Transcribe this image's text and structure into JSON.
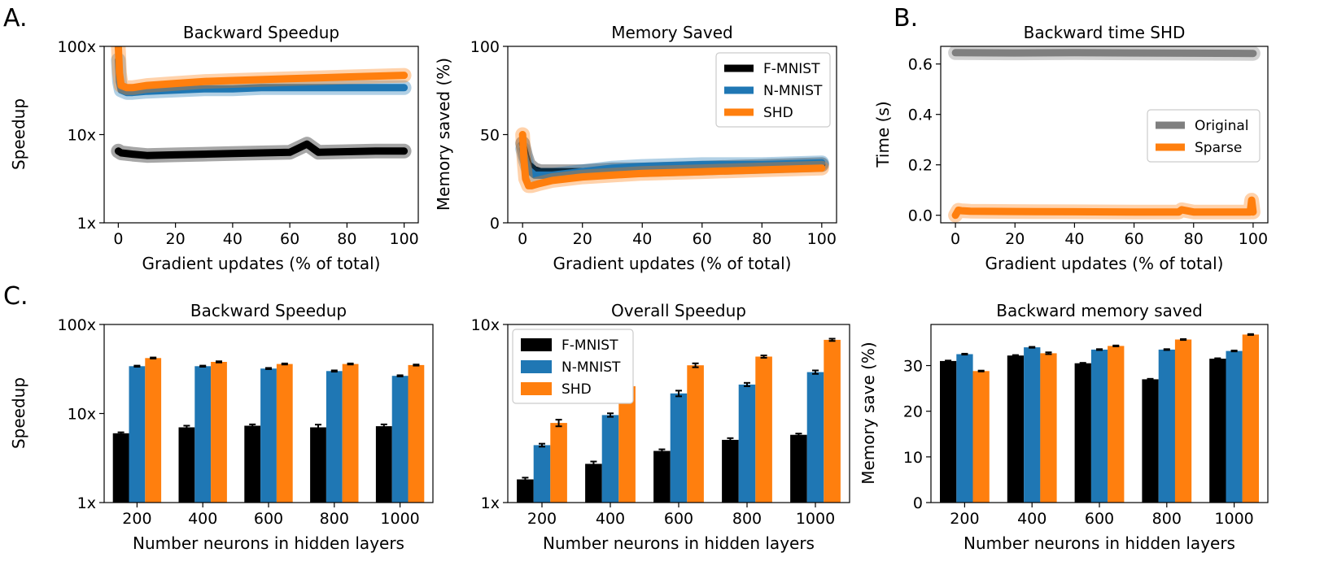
{
  "panel_letters": {
    "a": "A.",
    "b": "B.",
    "c": "C."
  },
  "colors": {
    "fmnist": "#000000",
    "nmnist": "#1f77b4",
    "shd": "#ff7f0e",
    "original": "#7f7f7f",
    "sparse": "#ff7f0e"
  },
  "chart_data": [
    {
      "id": "a1",
      "type": "line",
      "title": "Backward Speedup",
      "xlabel": "Gradient updates (% of total)",
      "ylabel": "Speedup",
      "yscale": "log",
      "xlim": [
        0,
        100
      ],
      "ylim": [
        1,
        100
      ],
      "xticks": [
        0,
        20,
        40,
        60,
        80,
        100
      ],
      "xtick_labels": [
        "0",
        "20",
        "40",
        "60",
        "80",
        "100"
      ],
      "yticks": [
        1,
        10,
        100
      ],
      "ytick_labels": [
        "1x",
        "10x",
        "100x"
      ],
      "series": [
        {
          "name": "F-MNIST",
          "color": "#000000",
          "x": [
            0,
            1,
            5,
            10,
            20,
            30,
            40,
            50,
            60,
            66,
            70,
            80,
            90,
            100
          ],
          "y": [
            6.5,
            6.2,
            6.0,
            5.8,
            5.9,
            6.0,
            6.1,
            6.2,
            6.3,
            7.8,
            6.3,
            6.4,
            6.5,
            6.5
          ]
        },
        {
          "name": "N-MNIST",
          "color": "#1f77b4",
          "x": [
            0,
            0.4,
            1,
            3,
            5,
            10,
            20,
            30,
            40,
            50,
            60,
            70,
            80,
            90,
            100
          ],
          "y": [
            70,
            40,
            32,
            30,
            30,
            31,
            32,
            33,
            33,
            34,
            34,
            34,
            34,
            34,
            34
          ]
        },
        {
          "name": "SHD",
          "color": "#ff7f0e",
          "x": [
            0,
            0.4,
            1,
            3,
            5,
            10,
            20,
            30,
            40,
            50,
            60,
            70,
            80,
            90,
            100
          ],
          "y": [
            100,
            50,
            36,
            34,
            34,
            36,
            38,
            40,
            41,
            42,
            43,
            44,
            45,
            46,
            47
          ]
        }
      ]
    },
    {
      "id": "a2",
      "type": "line",
      "title": "Memory Saved",
      "xlabel": "Gradient updates (% of total)",
      "ylabel": "Memory saved (%)",
      "yscale": "linear",
      "xlim": [
        0,
        100
      ],
      "ylim": [
        0,
        100
      ],
      "xticks": [
        0,
        20,
        40,
        60,
        80,
        100
      ],
      "xtick_labels": [
        "0",
        "20",
        "40",
        "60",
        "80",
        "100"
      ],
      "yticks": [
        0,
        50,
        100
      ],
      "ytick_labels": [
        "0",
        "50",
        "100"
      ],
      "legend": [
        "F-MNIST",
        "N-MNIST",
        "SHD"
      ],
      "legend_position": "top-right",
      "series": [
        {
          "name": "F-MNIST",
          "color": "#000000",
          "x": [
            0,
            1,
            2,
            4,
            6,
            10,
            20,
            30,
            40,
            60,
            80,
            100
          ],
          "y": [
            45,
            38,
            33,
            30,
            29,
            29,
            29,
            30,
            30,
            31,
            32,
            33
          ]
        },
        {
          "name": "N-MNIST",
          "color": "#1f77b4",
          "x": [
            0,
            1,
            2,
            4,
            6,
            10,
            20,
            30,
            40,
            60,
            80,
            100
          ],
          "y": [
            42,
            35,
            30,
            27,
            27,
            27,
            29,
            31,
            32,
            33,
            33,
            34
          ]
        },
        {
          "name": "SHD",
          "color": "#ff7f0e",
          "x": [
            0,
            0.5,
            1,
            2,
            3,
            5,
            10,
            20,
            30,
            40,
            60,
            80,
            100
          ],
          "y": [
            50,
            35,
            25,
            21,
            21,
            22,
            24,
            26,
            27,
            28,
            29,
            30,
            31
          ]
        }
      ]
    },
    {
      "id": "b",
      "type": "line",
      "title": "Backward time SHD",
      "xlabel": "Gradient updates (% of total)",
      "ylabel": "Time (s)",
      "yscale": "linear",
      "xlim": [
        0,
        100
      ],
      "ylim": [
        -0.03,
        0.67
      ],
      "xticks": [
        0,
        20,
        40,
        60,
        80,
        100
      ],
      "xtick_labels": [
        "0",
        "20",
        "40",
        "60",
        "80",
        "100"
      ],
      "yticks": [
        0,
        0.2,
        0.4,
        0.6
      ],
      "ytick_labels": [
        "0.0",
        "0.2",
        "0.4",
        "0.6"
      ],
      "legend": [
        "Original",
        "Sparse"
      ],
      "legend_position": "center-right",
      "series": [
        {
          "name": "Original",
          "color": "#7f7f7f",
          "x": [
            0,
            20,
            40,
            60,
            80,
            100
          ],
          "y": [
            0.645,
            0.644,
            0.645,
            0.644,
            0.643,
            0.642
          ]
        },
        {
          "name": "Sparse",
          "color": "#ff7f0e",
          "x": [
            0,
            1,
            2,
            5,
            20,
            40,
            60,
            75,
            76,
            80,
            99,
            99.5,
            100
          ],
          "y": [
            0.0,
            0.02,
            0.018,
            0.016,
            0.015,
            0.014,
            0.013,
            0.013,
            0.022,
            0.013,
            0.013,
            0.06,
            0.013
          ]
        }
      ]
    },
    {
      "id": "c1",
      "type": "bar",
      "title": "Backward Speedup",
      "xlabel": "Number neurons in hidden layers",
      "ylabel": "Speedup",
      "yscale": "log",
      "ylim": [
        1,
        100
      ],
      "yticks": [
        1,
        10,
        100
      ],
      "ytick_labels": [
        "1x",
        "10x",
        "100x"
      ],
      "categories": [
        "200",
        "400",
        "600",
        "800",
        "1000"
      ],
      "series": [
        {
          "name": "F-MNIST",
          "color": "#000000",
          "values": [
            6.0,
            7.0,
            7.3,
            7.0,
            7.2
          ],
          "errors": [
            0.15,
            0.3,
            0.25,
            0.5,
            0.35
          ]
        },
        {
          "name": "N-MNIST",
          "color": "#1f77b4",
          "values": [
            34,
            34,
            32,
            30,
            26.5
          ],
          "errors": [
            0.5,
            0.5,
            0.5,
            0.5,
            0.4
          ]
        },
        {
          "name": "SHD",
          "color": "#ff7f0e",
          "values": [
            42,
            38,
            36,
            36,
            35
          ],
          "errors": [
            0.6,
            0.6,
            0.5,
            0.5,
            0.5
          ]
        }
      ]
    },
    {
      "id": "c2",
      "type": "bar",
      "title": "Overall Speedup",
      "xlabel": "Number neurons in hidden layers",
      "ylabel": "",
      "yscale": "log",
      "ylim": [
        1,
        10
      ],
      "yticks": [
        1,
        10
      ],
      "ytick_labels": [
        "1x",
        "10x"
      ],
      "categories": [
        "200",
        "400",
        "600",
        "800",
        "1000"
      ],
      "legend": [
        "F-MNIST",
        "N-MNIST",
        "SHD"
      ],
      "legend_position": "top-left",
      "series": [
        {
          "name": "F-MNIST",
          "color": "#000000",
          "values": [
            1.35,
            1.65,
            1.95,
            2.25,
            2.4
          ],
          "errors": [
            0.03,
            0.05,
            0.04,
            0.05,
            0.04
          ]
        },
        {
          "name": "N-MNIST",
          "color": "#1f77b4",
          "values": [
            2.1,
            3.1,
            4.1,
            4.6,
            5.4
          ],
          "errors": [
            0.04,
            0.07,
            0.15,
            0.1,
            0.12
          ]
        },
        {
          "name": "SHD",
          "color": "#ff7f0e",
          "values": [
            2.8,
            4.5,
            5.9,
            6.6,
            8.2
          ],
          "errors": [
            0.12,
            0.12,
            0.15,
            0.1,
            0.12
          ]
        }
      ]
    },
    {
      "id": "c3",
      "type": "bar",
      "title": "Backward memory saved",
      "xlabel": "Number neurons in hidden layers",
      "ylabel": "Memory save (%)",
      "yscale": "linear",
      "ylim": [
        0,
        39
      ],
      "yticks": [
        0,
        10,
        20,
        30
      ],
      "ytick_labels": [
        "0",
        "10",
        "20",
        "30"
      ],
      "categories": [
        "200",
        "400",
        "600",
        "800",
        "1000"
      ],
      "series": [
        {
          "name": "F-MNIST",
          "color": "#000000",
          "values": [
            31.0,
            32.2,
            30.5,
            27.0,
            31.5
          ],
          "errors": [
            0.1,
            0.1,
            0.1,
            0.1,
            0.1
          ]
        },
        {
          "name": "N-MNIST",
          "color": "#1f77b4",
          "values": [
            32.5,
            34.0,
            33.5,
            33.5,
            33.2
          ],
          "errors": [
            0.1,
            0.1,
            0.1,
            0.1,
            0.1
          ]
        },
        {
          "name": "SHD",
          "color": "#ff7f0e",
          "values": [
            28.8,
            32.7,
            34.3,
            35.7,
            36.8
          ],
          "errors": [
            0.1,
            0.2,
            0.1,
            0.1,
            0.1
          ]
        }
      ]
    }
  ]
}
